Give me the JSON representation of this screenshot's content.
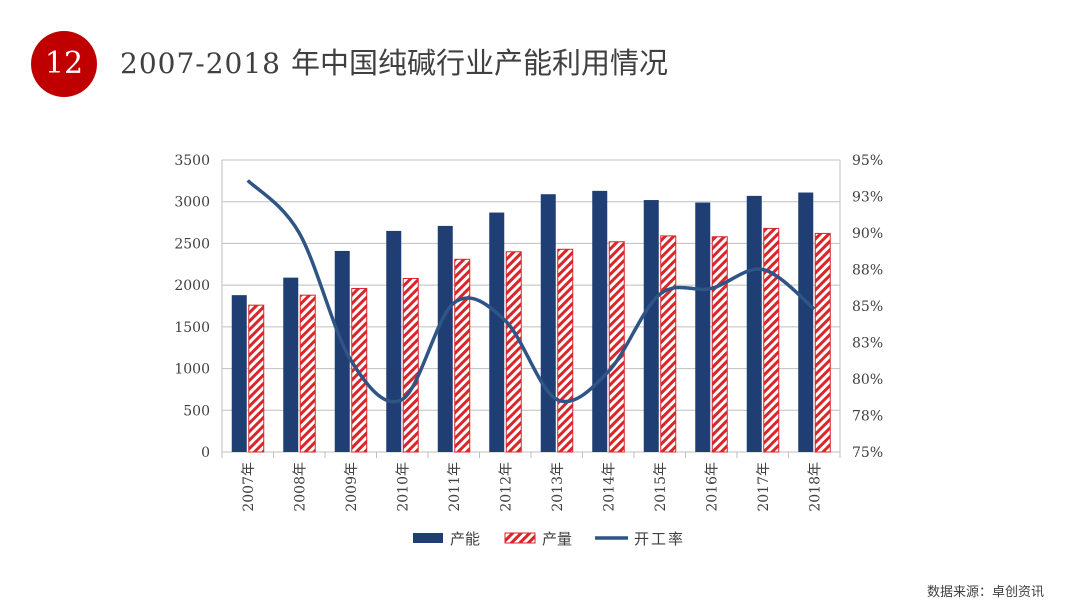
{
  "header": {
    "slide_number": "12",
    "title_years": "2007-2018",
    "title_text": "年中国纯碱行业产能利用情况"
  },
  "source": "数据来源：卓创资讯",
  "colors": {
    "accent_red": "#c00000",
    "capacity": "#1f3e73",
    "production_stripe": "#d9262a",
    "rate_line": "#2f5486"
  },
  "chart_data": {
    "type": "bar",
    "categories": [
      "2007年",
      "2008年",
      "2009年",
      "2010年",
      "2011年",
      "2012年",
      "2013年",
      "2014年",
      "2015年",
      "2016年",
      "2017年",
      "2018年"
    ],
    "series": [
      {
        "name": "产能",
        "type": "bar",
        "axis": "left",
        "values": [
          1880,
          2090,
          2410,
          2650,
          2710,
          2870,
          3090,
          3130,
          3020,
          2990,
          3070,
          3110
        ]
      },
      {
        "name": "产量",
        "type": "bar",
        "axis": "left",
        "pattern": "diagonal-stripes",
        "values": [
          1760,
          1880,
          1960,
          2080,
          2310,
          2400,
          2430,
          2520,
          2590,
          2580,
          2680,
          2620
        ]
      },
      {
        "name": "开工率",
        "type": "line",
        "axis": "right",
        "unit": "%",
        "values": [
          93.6,
          90.0,
          81.3,
          78.6,
          85.2,
          84.0,
          78.6,
          80.5,
          85.8,
          86.2,
          87.5,
          84.8
        ]
      }
    ],
    "y_left": {
      "min": 0,
      "max": 3500,
      "ticks": [
        "0",
        "500",
        "1000",
        "1500",
        "2000",
        "2500",
        "3000",
        "3500"
      ]
    },
    "y_right": {
      "min": 75,
      "max": 95,
      "ticks": [
        "75%",
        "78%",
        "80%",
        "83%",
        "85%",
        "88%",
        "90%",
        "93%",
        "95%"
      ]
    },
    "grid": true,
    "legend_position": "bottom"
  }
}
